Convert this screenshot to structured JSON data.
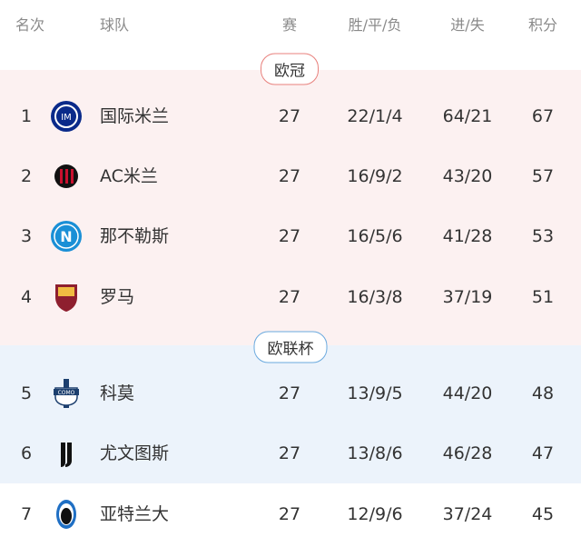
{
  "header": {
    "rank": "名次",
    "team": "球队",
    "played": "赛",
    "wdl": "胜/平/负",
    "goals": "进/失",
    "points": "积分"
  },
  "zones": [
    {
      "label": "欧冠",
      "color": "#e8807c",
      "bg": "#fcf1f1"
    },
    {
      "label": "欧联杯",
      "color": "#6aa9de",
      "bg": "#ecf3fb"
    }
  ],
  "rows": [
    {
      "rank": "1",
      "team": "国际米兰",
      "logo": "inter-logo-icon",
      "played": "27",
      "wdl": "22/1/4",
      "goals": "64/21",
      "points": "67"
    },
    {
      "rank": "2",
      "team": "AC米兰",
      "logo": "ac-milan-logo-icon",
      "played": "27",
      "wdl": "16/9/2",
      "goals": "43/20",
      "points": "57"
    },
    {
      "rank": "3",
      "team": "那不勒斯",
      "logo": "napoli-logo-icon",
      "played": "27",
      "wdl": "16/5/6",
      "goals": "41/28",
      "points": "53"
    },
    {
      "rank": "4",
      "team": "罗马",
      "logo": "roma-logo-icon",
      "played": "27",
      "wdl": "16/3/8",
      "goals": "37/19",
      "points": "51"
    },
    {
      "rank": "5",
      "team": "科莫",
      "logo": "como-logo-icon",
      "played": "27",
      "wdl": "13/9/5",
      "goals": "44/20",
      "points": "48"
    },
    {
      "rank": "6",
      "team": "尤文图斯",
      "logo": "juventus-logo-icon",
      "played": "27",
      "wdl": "13/8/6",
      "goals": "46/28",
      "points": "47"
    },
    {
      "rank": "7",
      "team": "亚特兰大",
      "logo": "atalanta-logo-icon",
      "played": "27",
      "wdl": "12/9/6",
      "goals": "37/24",
      "points": "45"
    }
  ]
}
